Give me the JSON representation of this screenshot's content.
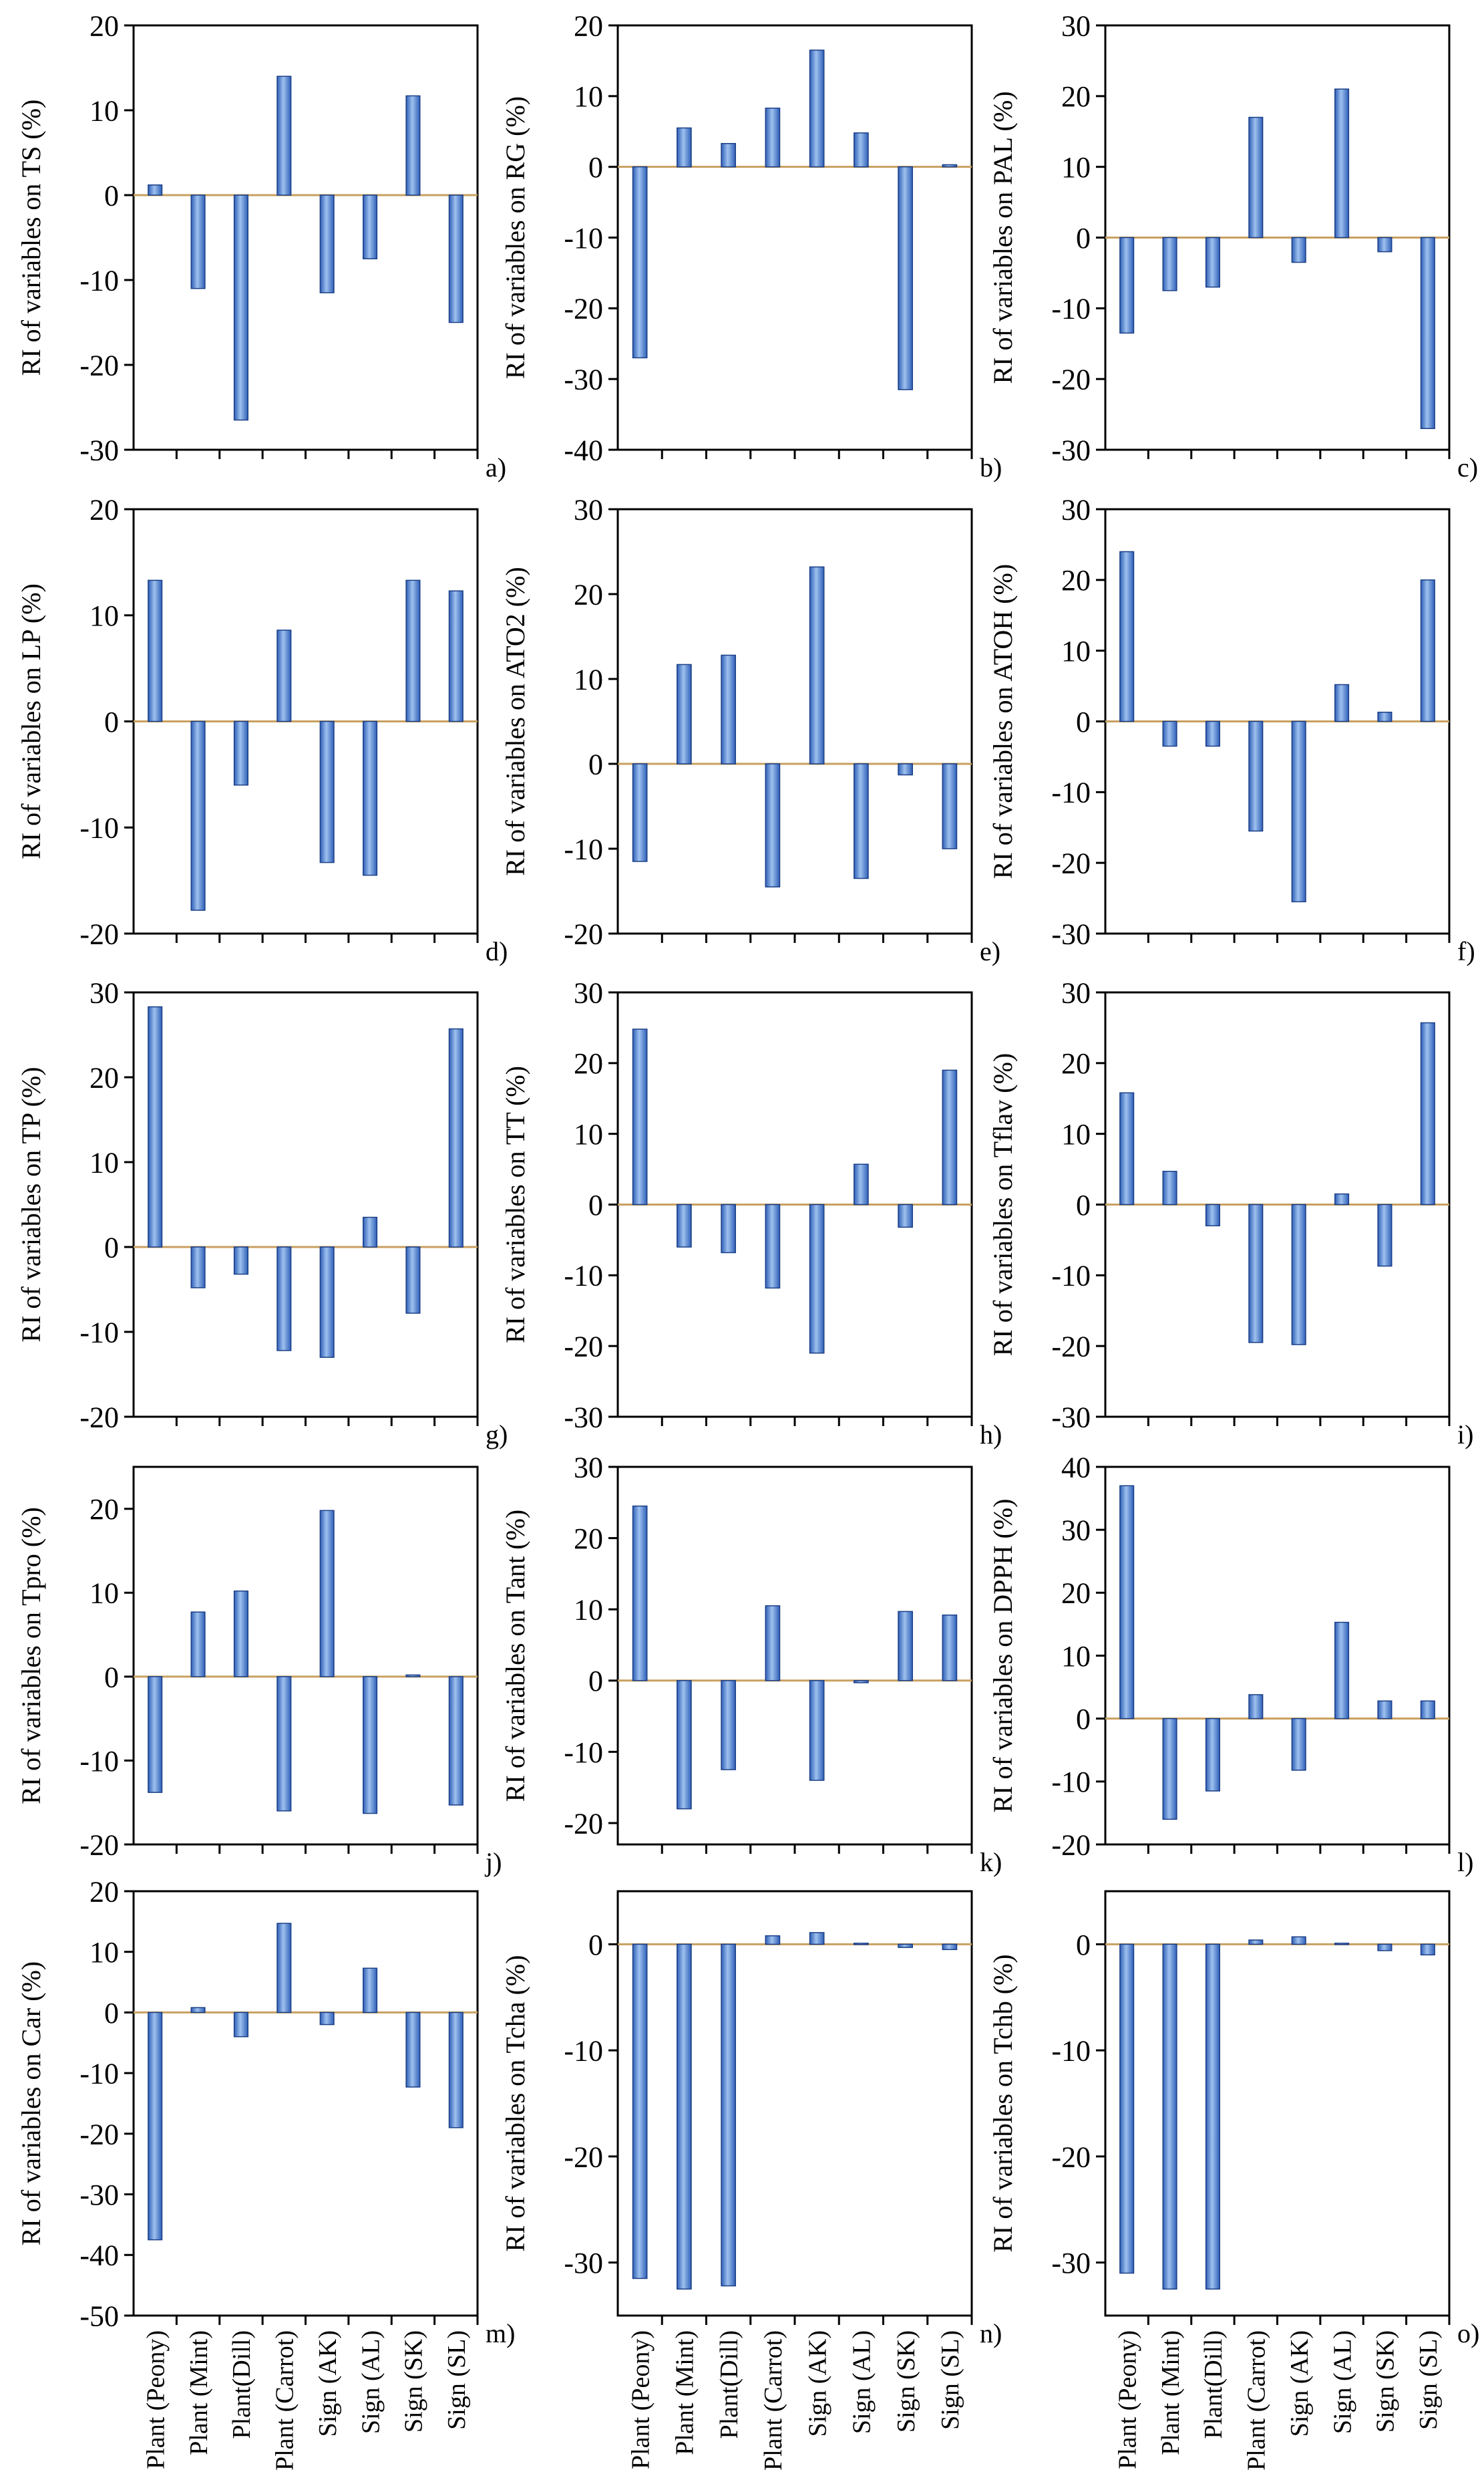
{
  "figure": {
    "category_labels": [
      "Plant (Peony)",
      "Plant (Mint)",
      "Plant(Dill)",
      "Plant (Carrot)",
      "Sign (AK)",
      "Sign (AL)",
      "Sign (SK)",
      "Sign (SL)"
    ],
    "bar_color": "#2f5fb8",
    "bar_highlight": "#9ec1ee",
    "zero_line_color": "#c8a060"
  },
  "chart_data": [
    {
      "type": "bar",
      "panel": "a)",
      "ylabel": "RI of variables on TS (%)",
      "ylim": [
        -30,
        20
      ],
      "yticks": [
        -30,
        -20,
        -10,
        0,
        10,
        20
      ],
      "categories": [
        "Plant (Peony)",
        "Plant (Mint)",
        "Plant(Dill)",
        "Plant (Carrot)",
        "Sign (AK)",
        "Sign (AL)",
        "Sign (SK)",
        "Sign (SL)"
      ],
      "values": [
        1.2,
        -11,
        -26.5,
        14,
        -11.5,
        -7.5,
        11.7,
        -15
      ]
    },
    {
      "type": "bar",
      "panel": "b)",
      "ylabel": "RI of variables on RG (%)",
      "ylim": [
        -40,
        20
      ],
      "yticks": [
        -40,
        -30,
        -20,
        -10,
        0,
        10,
        20
      ],
      "categories": [
        "Plant (Peony)",
        "Plant (Mint)",
        "Plant(Dill)",
        "Plant (Carrot)",
        "Sign (AK)",
        "Sign (AL)",
        "Sign (SK)",
        "Sign (SL)"
      ],
      "values": [
        -27,
        5.5,
        3.3,
        8.3,
        16.5,
        4.8,
        -31.5,
        0.3
      ]
    },
    {
      "type": "bar",
      "panel": "c)",
      "ylabel": "RI of variables on PAL (%)",
      "ylim": [
        -30,
        30
      ],
      "yticks": [
        -30,
        -20,
        -10,
        0,
        10,
        20,
        30
      ],
      "categories": [
        "Plant (Peony)",
        "Plant (Mint)",
        "Plant(Dill)",
        "Plant (Carrot)",
        "Sign (AK)",
        "Sign (AL)",
        "Sign (SK)",
        "Sign (SL)"
      ],
      "values": [
        -13.5,
        -7.5,
        -7,
        17,
        -3.5,
        21,
        -2,
        -27
      ]
    },
    {
      "type": "bar",
      "panel": "d)",
      "ylabel": "RI of variables on LP (%)",
      "ylim": [
        -20,
        20
      ],
      "yticks": [
        -20,
        -10,
        0,
        10,
        20
      ],
      "categories": [
        "Plant (Peony)",
        "Plant (Mint)",
        "Plant(Dill)",
        "Plant (Carrot)",
        "Sign (AK)",
        "Sign (AL)",
        "Sign (SK)",
        "Sign (SL)"
      ],
      "values": [
        13.3,
        -17.8,
        -6,
        8.6,
        -13.3,
        -14.5,
        13.3,
        12.3
      ]
    },
    {
      "type": "bar",
      "panel": "e)",
      "ylabel": "RI of variables on ATO2 (%)",
      "ylim": [
        -20,
        30
      ],
      "yticks": [
        -20,
        -10,
        0,
        10,
        20,
        30
      ],
      "categories": [
        "Plant (Peony)",
        "Plant (Mint)",
        "Plant(Dill)",
        "Plant (Carrot)",
        "Sign (AK)",
        "Sign (AL)",
        "Sign (SK)",
        "Sign (SL)"
      ],
      "values": [
        -11.5,
        11.7,
        12.8,
        -14.5,
        23.2,
        -13.5,
        -1.3,
        -10
      ]
    },
    {
      "type": "bar",
      "panel": "f)",
      "ylabel": "RI of variables on ATOH (%)",
      "ylim": [
        -30,
        30
      ],
      "yticks": [
        -30,
        -20,
        -10,
        0,
        10,
        20,
        30
      ],
      "categories": [
        "Plant (Peony)",
        "Plant (Mint)",
        "Plant(Dill)",
        "Plant (Carrot)",
        "Sign (AK)",
        "Sign (AL)",
        "Sign (SK)",
        "Sign (SL)"
      ],
      "values": [
        24,
        -3.5,
        -3.5,
        -15.5,
        -25.5,
        5.2,
        1.3,
        20
      ]
    },
    {
      "type": "bar",
      "panel": "g)",
      "ylabel": "RI of variables on TP (%)",
      "ylim": [
        -20,
        30
      ],
      "yticks": [
        -20,
        -10,
        0,
        10,
        20,
        30
      ],
      "categories": [
        "Plant (Peony)",
        "Plant (Mint)",
        "Plant(Dill)",
        "Plant (Carrot)",
        "Sign (AK)",
        "Sign (AL)",
        "Sign (SK)",
        "Sign (SL)"
      ],
      "values": [
        28.3,
        -4.8,
        -3.2,
        -12.2,
        -13,
        3.5,
        -7.8,
        25.7
      ]
    },
    {
      "type": "bar",
      "panel": "h)",
      "ylabel": "RI of variables on TT (%)",
      "ylim": [
        -30,
        30
      ],
      "yticks": [
        -30,
        -20,
        -10,
        0,
        10,
        20,
        30
      ],
      "categories": [
        "Plant (Peony)",
        "Plant (Mint)",
        "Plant(Dill)",
        "Plant (Carrot)",
        "Sign (AK)",
        "Sign (AL)",
        "Sign (SK)",
        "Sign (SL)"
      ],
      "values": [
        24.8,
        -6,
        -6.8,
        -11.8,
        -21,
        5.7,
        -3.2,
        19
      ]
    },
    {
      "type": "bar",
      "panel": "i)",
      "ylabel": "RI of variables on Tflav (%)",
      "ylim": [
        -30,
        30
      ],
      "yticks": [
        -30,
        -20,
        -10,
        0,
        10,
        20,
        30
      ],
      "categories": [
        "Plant (Peony)",
        "Plant (Mint)",
        "Plant(Dill)",
        "Plant (Carrot)",
        "Sign (AK)",
        "Sign (AL)",
        "Sign (SK)",
        "Sign (SL)"
      ],
      "values": [
        15.8,
        4.7,
        -3,
        -19.5,
        -19.8,
        1.5,
        -8.7,
        25.7
      ]
    },
    {
      "type": "bar",
      "panel": "j)",
      "ylabel": "RI of variables on Tpro (%)",
      "ylim": [
        -20,
        25
      ],
      "yticks": [
        -20,
        -10,
        0,
        10,
        20
      ],
      "categories": [
        "Plant (Peony)",
        "Plant (Mint)",
        "Plant(Dill)",
        "Plant (Carrot)",
        "Sign (AK)",
        "Sign (AL)",
        "Sign (SK)",
        "Sign (SL)"
      ],
      "values": [
        -13.8,
        7.7,
        10.2,
        -16,
        19.8,
        -16.3,
        0.2,
        -15.3
      ]
    },
    {
      "type": "bar",
      "panel": "k)",
      "ylabel": "RI of variables on Tant (%)",
      "ylim": [
        -23,
        30
      ],
      "yticks": [
        -20,
        -10,
        0,
        10,
        20,
        30
      ],
      "categories": [
        "Plant (Peony)",
        "Plant (Mint)",
        "Plant(Dill)",
        "Plant (Carrot)",
        "Sign (AK)",
        "Sign (AL)",
        "Sign (SK)",
        "Sign (SL)"
      ],
      "values": [
        24.5,
        -18,
        -12.5,
        10.5,
        -14,
        -0.3,
        9.7,
        9.2
      ]
    },
    {
      "type": "bar",
      "panel": "l)",
      "ylabel": "RI of variables on DPPH (%)",
      "ylim": [
        -20,
        40
      ],
      "yticks": [
        -20,
        -10,
        0,
        10,
        20,
        30,
        40
      ],
      "categories": [
        "Plant (Peony)",
        "Plant (Mint)",
        "Plant(Dill)",
        "Plant (Carrot)",
        "Sign (AK)",
        "Sign (AL)",
        "Sign (SK)",
        "Sign (SL)"
      ],
      "values": [
        37,
        -16,
        -11.5,
        3.8,
        -8.2,
        15.3,
        2.8,
        2.8
      ]
    },
    {
      "type": "bar",
      "panel": "m)",
      "ylabel": "RI of variables on Car (%)",
      "ylim": [
        -50,
        20
      ],
      "yticks": [
        -50,
        -40,
        -30,
        -20,
        -10,
        0,
        10,
        20
      ],
      "categories": [
        "Plant (Peony)",
        "Plant (Mint)",
        "Plant(Dill)",
        "Plant (Carrot)",
        "Sign (AK)",
        "Sign (AL)",
        "Sign (SK)",
        "Sign (SL)"
      ],
      "values": [
        -37.5,
        0.8,
        -4,
        14.7,
        -2,
        7.3,
        -12.3,
        -19
      ]
    },
    {
      "type": "bar",
      "panel": "n)",
      "ylabel": "RI of variables on Tcha (%)",
      "ylim": [
        -35,
        5
      ],
      "yticks": [
        -30,
        -20,
        -10,
        0
      ],
      "categories": [
        "Plant (Peony)",
        "Plant (Mint)",
        "Plant(Dill)",
        "Plant (Carrot)",
        "Sign (AK)",
        "Sign (AL)",
        "Sign (SK)",
        "Sign (SL)"
      ],
      "values": [
        -31.5,
        -32.5,
        -32.2,
        0.8,
        1.1,
        0.1,
        -0.3,
        -0.5
      ]
    },
    {
      "type": "bar",
      "panel": "o)",
      "ylabel": "RI of variables on Tchb (%)",
      "ylim": [
        -35,
        5
      ],
      "yticks": [
        -30,
        -20,
        -10,
        0
      ],
      "categories": [
        "Plant (Peony)",
        "Plant (Mint)",
        "Plant(Dill)",
        "Plant (Carrot)",
        "Sign (AK)",
        "Sign (AL)",
        "Sign (SK)",
        "Sign (SL)"
      ],
      "values": [
        -31,
        -32.5,
        -32.5,
        0.4,
        0.7,
        0.1,
        -0.6,
        -1
      ]
    }
  ]
}
